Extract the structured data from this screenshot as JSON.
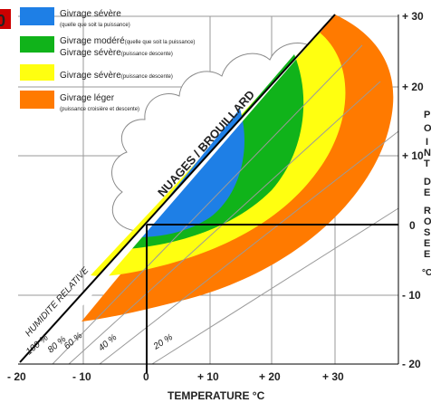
{
  "legend": [
    {
      "label": "Givrage sévère",
      "sub": "(quelle que soit la puissance)",
      "color": "#1e7fe6"
    },
    {
      "label": "Givrage modéré",
      "label_suffix": "(quelle que soit la puissance)",
      "label2": "Givrage sévère",
      "label2_suffix": "(puissance descente)",
      "color": "#10b31a"
    },
    {
      "label": "Givrage sévère",
      "label_suffix": "(puissance descente)",
      "color": "#ffff10"
    },
    {
      "label": "Givrage léger",
      "sub": "(puissance croisière et descente)",
      "color": "#ff7a00"
    }
  ],
  "cloud_line_label": "NUAGES / BROUILLARD",
  "humidity_label": "HUMIDITE RELATIVE",
  "humidity_lines": [
    "100 %",
    "80 %",
    "60 %",
    "40 %",
    "20 %"
  ],
  "x_axis": {
    "title": "TEMPERATURE °C",
    "ticks": [
      "- 20",
      "- 10",
      "0",
      "+ 10",
      "+ 20",
      "+ 30"
    ]
  },
  "y_axis": {
    "ticks": [
      "+ 30",
      "+ 20",
      "+ 10",
      "0",
      "- 10",
      "- 20"
    ]
  },
  "side_letters": [
    "P",
    "O",
    "I",
    "N",
    "T",
    "D",
    "E",
    "R",
    "O",
    "S",
    "E",
    "E",
    "°C"
  ],
  "corner_glyph": "0"
}
